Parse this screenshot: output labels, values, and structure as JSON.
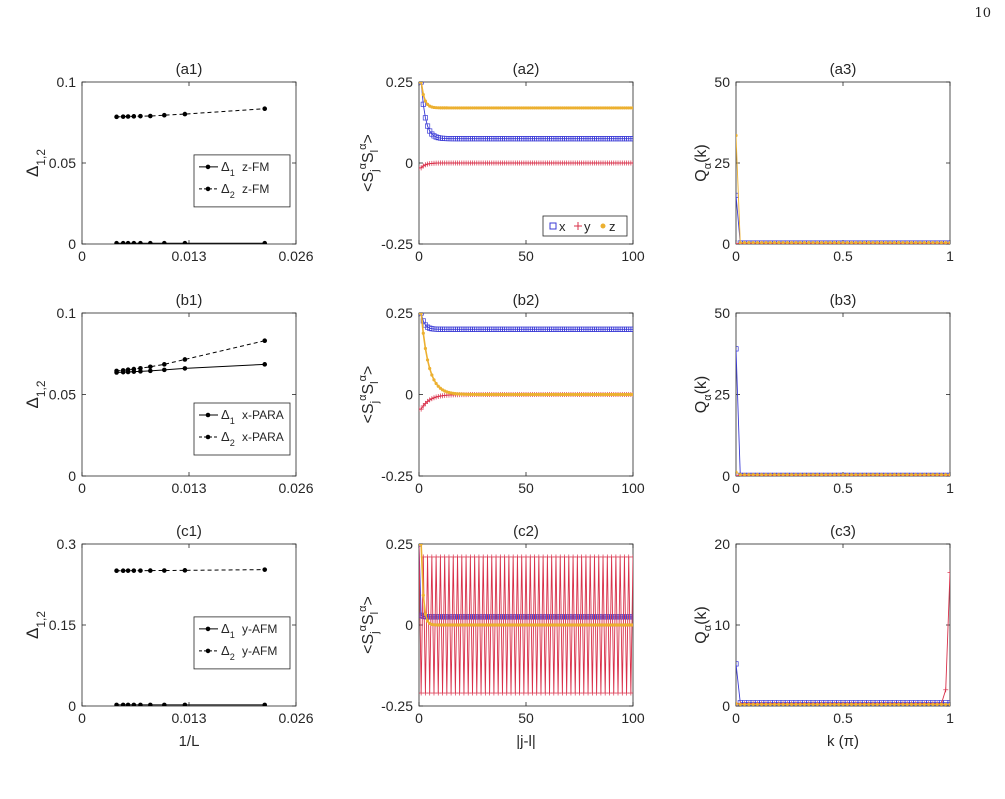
{
  "page_number": "10",
  "colors": {
    "x": "#3a3ad6",
    "y": "#d9304a",
    "z": "#ecb030",
    "gap": "#000000",
    "axis": "#262626"
  },
  "shared": {
    "gap_xlabel": "1/L",
    "gap_ylabel": "Δ1,2",
    "corr_xlabel": "|j-l|",
    "corr_ylabel": "<SjαSlα>",
    "q_xlabel": "k (π)",
    "q_ylabel": "Qα(k)",
    "gap_legend_1": "Δ1",
    "gap_legend_2": "Δ2",
    "corr_legend": [
      "x",
      "y",
      "z"
    ]
  },
  "chart_data": [
    {
      "id": "a1",
      "type": "line",
      "title": "(a1)",
      "xlim": [
        0,
        0.026
      ],
      "xticks": [
        0,
        0.013,
        0.026
      ],
      "xtick_labels": [
        "0",
        "0.013",
        "0.026"
      ],
      "ylim": [
        0,
        0.1
      ],
      "yticks": [
        0,
        0.05,
        0.1
      ],
      "ytick_labels": [
        "0",
        "0.05",
        "0.1"
      ],
      "legend": [
        "z-FM",
        "z-FM"
      ],
      "x": [
        0.0042,
        0.005,
        0.0056,
        0.0063,
        0.0071,
        0.0083,
        0.01,
        0.0125,
        0.0222
      ],
      "series": [
        {
          "name": "Δ1",
          "style": "solid",
          "values": [
            0.0005,
            0.0005,
            0.0005,
            0.0005,
            0.0005,
            0.0005,
            0.0005,
            0.0005,
            0.0005
          ]
        },
        {
          "name": "Δ2",
          "style": "dashed",
          "values": [
            0.0785,
            0.0786,
            0.0787,
            0.0788,
            0.0789,
            0.079,
            0.0795,
            0.0802,
            0.0835
          ]
        }
      ]
    },
    {
      "id": "b1",
      "type": "line",
      "title": "(b1)",
      "xlim": [
        0,
        0.026
      ],
      "xticks": [
        0,
        0.013,
        0.026
      ],
      "xtick_labels": [
        "0",
        "0.013",
        "0.026"
      ],
      "ylim": [
        0,
        0.1
      ],
      "yticks": [
        0,
        0.05,
        0.1
      ],
      "ytick_labels": [
        "0",
        "0.05",
        "0.1"
      ],
      "legend": [
        "x-PARA",
        "x-PARA"
      ],
      "x": [
        0.0042,
        0.005,
        0.0056,
        0.0063,
        0.0071,
        0.0083,
        0.01,
        0.0125,
        0.0222
      ],
      "series": [
        {
          "name": "Δ1",
          "style": "solid",
          "values": [
            0.0635,
            0.0637,
            0.0638,
            0.064,
            0.0642,
            0.0645,
            0.0651,
            0.066,
            0.0685
          ]
        },
        {
          "name": "Δ2",
          "style": "dashed",
          "values": [
            0.0645,
            0.0648,
            0.0652,
            0.0656,
            0.0661,
            0.067,
            0.0685,
            0.0715,
            0.083
          ]
        }
      ]
    },
    {
      "id": "c1",
      "type": "line",
      "title": "(c1)",
      "xlim": [
        0,
        0.026
      ],
      "xticks": [
        0,
        0.013,
        0.026
      ],
      "xtick_labels": [
        "0",
        "0.013",
        "0.026"
      ],
      "ylim": [
        0,
        0.3
      ],
      "yticks": [
        0,
        0.15,
        0.3
      ],
      "ytick_labels": [
        "0",
        "0.15",
        "0.3"
      ],
      "xlabel": "1/L",
      "legend": [
        "y-AFM",
        "y-AFM"
      ],
      "x": [
        0.0042,
        0.005,
        0.0056,
        0.0063,
        0.0071,
        0.0083,
        0.01,
        0.0125,
        0.0222
      ],
      "series": [
        {
          "name": "Δ1",
          "style": "solid",
          "values": [
            0.002,
            0.002,
            0.002,
            0.002,
            0.002,
            0.002,
            0.002,
            0.002,
            0.002
          ]
        },
        {
          "name": "Δ2",
          "style": "dashed",
          "values": [
            0.2505,
            0.2505,
            0.2506,
            0.2506,
            0.2507,
            0.2508,
            0.2509,
            0.2512,
            0.2525
          ]
        }
      ]
    },
    {
      "id": "a2",
      "type": "line",
      "title": "(a2)",
      "xlim": [
        0,
        100
      ],
      "xticks": [
        0,
        50,
        100
      ],
      "xtick_labels": [
        "0",
        "50",
        "100"
      ],
      "ylim": [
        -0.25,
        0.25
      ],
      "yticks": [
        -0.25,
        0,
        0.25
      ],
      "ytick_labels": [
        "-0.25",
        "0",
        "0.25"
      ],
      "series": [
        {
          "name": "x",
          "start": 0.25,
          "tail": 0.075,
          "decay": 2.0,
          "alt": 0
        },
        {
          "name": "y",
          "start": -0.015,
          "tail": 0.0,
          "decay": 2.0,
          "alt": 0
        },
        {
          "name": "z",
          "start": 0.25,
          "tail": 0.17,
          "decay": 1.5,
          "alt": 0
        }
      ]
    },
    {
      "id": "b2",
      "type": "line",
      "title": "(b2)",
      "xlim": [
        0,
        100
      ],
      "xticks": [
        0,
        50,
        100
      ],
      "xtick_labels": [
        "0",
        "50",
        "100"
      ],
      "ylim": [
        -0.25,
        0.25
      ],
      "yticks": [
        -0.25,
        0,
        0.25
      ],
      "ytick_labels": [
        "-0.25",
        "0",
        "0.25"
      ],
      "series": [
        {
          "name": "x",
          "start": 0.25,
          "tail": 0.2,
          "decay": 1.5,
          "alt": 0
        },
        {
          "name": "y",
          "start": -0.045,
          "tail": 0.0,
          "decay": 4.0,
          "alt": 0
        },
        {
          "name": "z",
          "start": 0.25,
          "tail": 0.0,
          "decay": 3.5,
          "alt": 0
        }
      ]
    },
    {
      "id": "c2",
      "type": "line",
      "title": "(c2)",
      "xlim": [
        0,
        100
      ],
      "xticks": [
        0,
        50,
        100
      ],
      "xtick_labels": [
        "0",
        "50",
        "100"
      ],
      "ylim": [
        -0.25,
        0.25
      ],
      "yticks": [
        -0.25,
        0,
        0.25
      ],
      "ytick_labels": [
        "-0.25",
        "0",
        "0.25"
      ],
      "xlabel": "|j-l|",
      "series": [
        {
          "name": "x",
          "start": 0.03,
          "tail": 0.025,
          "decay": 1.0,
          "alt": 0
        },
        {
          "name": "y",
          "start": 0.21,
          "tail": 0.0,
          "decay": 1.0,
          "alt": 0.21
        },
        {
          "name": "z",
          "start": 0.25,
          "tail": 0.0,
          "decay": 1.0,
          "alt": 0
        }
      ]
    },
    {
      "id": "a3",
      "type": "line",
      "title": "(a3)",
      "xlim": [
        0,
        1
      ],
      "xticks": [
        0,
        0.5,
        1
      ],
      "xtick_labels": [
        "0",
        "0.5",
        "1"
      ],
      "ylim": [
        0,
        50
      ],
      "yticks": [
        0,
        25,
        50
      ],
      "ytick_labels": [
        "0",
        "25",
        "50"
      ],
      "series": [
        {
          "name": "x",
          "peak_at": 0,
          "peak": 15,
          "base": 0.3
        },
        {
          "name": "y",
          "peak_at": 0,
          "peak": 0,
          "base": 0.2
        },
        {
          "name": "z",
          "peak_at": 0,
          "peak": 33.5,
          "base": 0.4
        }
      ]
    },
    {
      "id": "b3",
      "type": "line",
      "title": "(b3)",
      "xlim": [
        0,
        1
      ],
      "xticks": [
        0,
        0.5,
        1
      ],
      "xtick_labels": [
        "0",
        "0.5",
        "1"
      ],
      "ylim": [
        0,
        50
      ],
      "yticks": [
        0,
        25,
        50
      ],
      "ytick_labels": [
        "0",
        "25",
        "50"
      ],
      "series": [
        {
          "name": "x",
          "peak_at": 0,
          "peak": 39,
          "base": 0.2
        },
        {
          "name": "y",
          "peak_at": 0,
          "peak": 0,
          "base": 0.2
        },
        {
          "name": "z",
          "peak_at": 0,
          "peak": 1.2,
          "base": 0.4
        }
      ]
    },
    {
      "id": "c3",
      "type": "line",
      "title": "(c3)",
      "xlim": [
        0,
        1
      ],
      "xticks": [
        0,
        0.5,
        1
      ],
      "xtick_labels": [
        "0",
        "0.5",
        "1"
      ],
      "ylim": [
        0,
        20
      ],
      "yticks": [
        0,
        10,
        20
      ],
      "ytick_labels": [
        "0",
        "10",
        "20"
      ],
      "xlabel": "k (π)",
      "series": [
        {
          "name": "x",
          "peak_at": 0,
          "peak": 5.2,
          "base": 0.4
        },
        {
          "name": "y",
          "peak_at": 1,
          "peak": 16.5,
          "base": 0.3,
          "pre_peak": 2
        },
        {
          "name": "z",
          "peak_at": 0,
          "peak": 0.3,
          "base": 0.2
        }
      ]
    }
  ]
}
